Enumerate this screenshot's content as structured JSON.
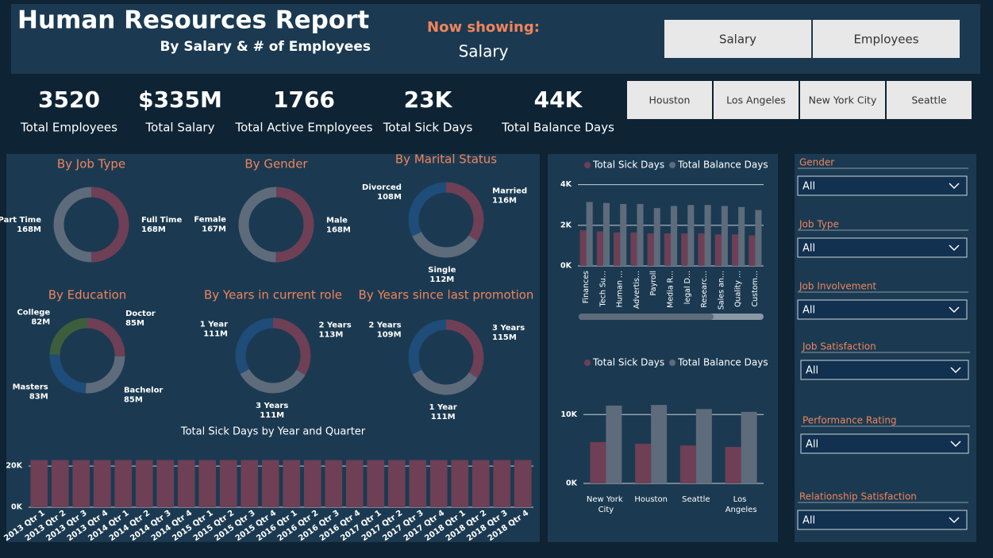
{
  "header": {
    "title": "Human Resources Report",
    "subtitle": "By Salary & # of Employees",
    "now_showing_label": "Now showing:",
    "now_showing_value": "Salary",
    "buttons": [
      "Salary",
      "Employees"
    ]
  },
  "kpis": [
    {
      "value": "3520",
      "label": "Total Employees"
    },
    {
      "value": "$335M",
      "label": "Total Salary"
    },
    {
      "value": "1766",
      "label": "Total Active Employees"
    },
    {
      "value": "23K",
      "label": "Total Sick Days"
    },
    {
      "value": "44K",
      "label": "Total Balance Days"
    }
  ],
  "city_buttons": [
    "Houston",
    "Los Angeles",
    "New York City",
    "Seattle"
  ],
  "filters": [
    {
      "label": "Gender",
      "value": "All"
    },
    {
      "label": "Job Type",
      "value": "All"
    },
    {
      "label": "Job Involvement",
      "value": "All"
    },
    {
      "label": "Job Satisfaction",
      "value": "All"
    },
    {
      "label": "Performance Rating",
      "value": "All"
    },
    {
      "label": "Relationship Satisfaction",
      "value": "All"
    }
  ],
  "chart_data": [
    {
      "type": "donut",
      "title": "By Job Type",
      "categories": [
        "Full Time",
        "Part Time"
      ],
      "values": [
        168,
        168
      ],
      "value_labels": [
        "168M",
        "168M"
      ],
      "colors": [
        "#6e3f55",
        "#5d6b7b"
      ]
    },
    {
      "type": "donut",
      "title": "By Gender",
      "categories": [
        "Male",
        "Female"
      ],
      "values": [
        168,
        167
      ],
      "value_labels": [
        "168M",
        "167M"
      ],
      "colors": [
        "#6e3f55",
        "#5d6b7b"
      ]
    },
    {
      "type": "donut",
      "title": "By Marital Status",
      "categories": [
        "Married",
        "Single",
        "Divorced"
      ],
      "values": [
        116,
        112,
        108
      ],
      "value_labels": [
        "116M",
        "112M",
        "108M"
      ],
      "colors": [
        "#6e3f55",
        "#5d6b7b",
        "#1e4d7a"
      ]
    },
    {
      "type": "donut",
      "title": "By Education",
      "categories": [
        "Doctor",
        "Bachelor",
        "Masters",
        "College"
      ],
      "values": [
        85,
        85,
        83,
        82
      ],
      "value_labels": [
        "85M",
        "85M",
        "83M",
        "82M"
      ],
      "colors": [
        "#6e3f55",
        "#5d6b7b",
        "#1e4d7a",
        "#3c5e3c"
      ]
    },
    {
      "type": "donut",
      "title": "By Years in current role",
      "categories": [
        "2 Years",
        "3 Years",
        "1 Year"
      ],
      "values": [
        113,
        111,
        111
      ],
      "value_labels": [
        "113M",
        "111M",
        "111M"
      ],
      "colors": [
        "#6e3f55",
        "#5d6b7b",
        "#1e4d7a"
      ]
    },
    {
      "type": "donut",
      "title": "By Years since last promotion",
      "categories": [
        "3 Years",
        "1 Year",
        "2 Years"
      ],
      "values": [
        115,
        111,
        109
      ],
      "value_labels": [
        "115M",
        "111M",
        "109M"
      ],
      "colors": [
        "#6e3f55",
        "#5d6b7b",
        "#1e4d7a"
      ]
    },
    {
      "type": "bar",
      "title": "Total Sick Days by Year and Quarter",
      "categories": [
        "2013 Qtr 1",
        "2013 Qtr 2",
        "2013 Qtr 3",
        "2013 Qtr 4",
        "2014 Qtr 1",
        "2014 Qtr 2",
        "2014 Qtr 3",
        "2014 Qtr 4",
        "2015 Qtr 1",
        "2015 Qtr 2",
        "2015 Qtr 3",
        "2015 Qtr 4",
        "2016 Qtr 1",
        "2016 Qtr 2",
        "2016 Qtr 3",
        "2016 Qtr 4",
        "2017 Qtr 1",
        "2017 Qtr 2",
        "2017 Qtr 3",
        "2017 Qtr 4",
        "2018 Qtr 1",
        "2018 Qtr 2",
        "2018 Qtr 3",
        "2018 Qtr 4"
      ],
      "values": [
        22900,
        22900,
        22900,
        22900,
        22900,
        22900,
        22900,
        22900,
        22900,
        22900,
        22900,
        22900,
        22900,
        22900,
        22900,
        22900,
        22900,
        22900,
        22900,
        22900,
        22900,
        22900,
        22900,
        22900
      ],
      "color": "#6e3f55",
      "ylim": [
        0,
        32000
      ],
      "yticks": [
        {
          "value": 0,
          "label": "0K"
        },
        {
          "value": 20000,
          "label": "20K"
        }
      ],
      "grid": true
    },
    {
      "type": "bar",
      "categories": [
        "Finances",
        "Tech Su...",
        "Human ...",
        "Advertis...",
        "Payroll",
        "Media R...",
        "legal D...",
        "Researc...",
        "Sales an...",
        "Quality ...",
        "Custom..."
      ],
      "series": [
        {
          "name": "Total Sick Days",
          "color": "#6e3f55",
          "values": [
            1750,
            1700,
            1650,
            1650,
            1600,
            1600,
            1600,
            1600,
            1550,
            1550,
            1500
          ]
        },
        {
          "name": "Total Balance Days",
          "color": "#5d6b7b",
          "values": [
            3150,
            3100,
            3050,
            3050,
            2850,
            2950,
            3000,
            3000,
            2950,
            2900,
            2750
          ]
        }
      ],
      "ylim": [
        0,
        4300
      ],
      "yticks": [
        {
          "value": 0,
          "label": "0K"
        },
        {
          "value": 2000,
          "label": "2K"
        },
        {
          "value": 4000,
          "label": "4K"
        }
      ],
      "legend": "top-left",
      "grid": true
    },
    {
      "type": "bar",
      "categories": [
        "New York City",
        "Houston",
        "Seattle",
        "Los Angeles"
      ],
      "series": [
        {
          "name": "Total Sick Days",
          "color": "#6e3f55",
          "values": [
            6000,
            5750,
            5500,
            5300
          ]
        },
        {
          "name": "Total Balance Days",
          "color": "#5d6b7b",
          "values": [
            11300,
            11400,
            10800,
            10400
          ]
        }
      ],
      "ylim": [
        0,
        12800
      ],
      "yticks": [
        {
          "value": 0,
          "label": "0K"
        },
        {
          "value": 10000,
          "label": "10K"
        }
      ],
      "legend": "top-left",
      "grid": true
    }
  ]
}
